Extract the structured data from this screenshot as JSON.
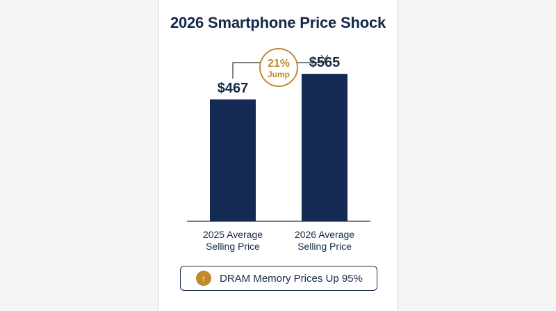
{
  "title": "2026 Smartphone Price Shock",
  "colors": {
    "bar": "#142a52",
    "accent": "#c08a2a",
    "text": "#16294a",
    "axis": "#333333"
  },
  "chart_data": {
    "type": "bar",
    "title": "2026 Smartphone Price Shock",
    "categories": [
      [
        "2025 Average",
        "Selling Price"
      ],
      [
        "2026 Average",
        "Selling Price"
      ]
    ],
    "values": [
      467,
      565
    ],
    "value_labels": [
      "$467",
      "$565"
    ],
    "ylim": [
      0,
      640
    ],
    "grid": false,
    "annotation": {
      "line1": "21%",
      "line2": "Jump"
    }
  },
  "footer": {
    "icon": "arrow-up-icon",
    "text": "DRAM Memory Prices Up 95%"
  }
}
